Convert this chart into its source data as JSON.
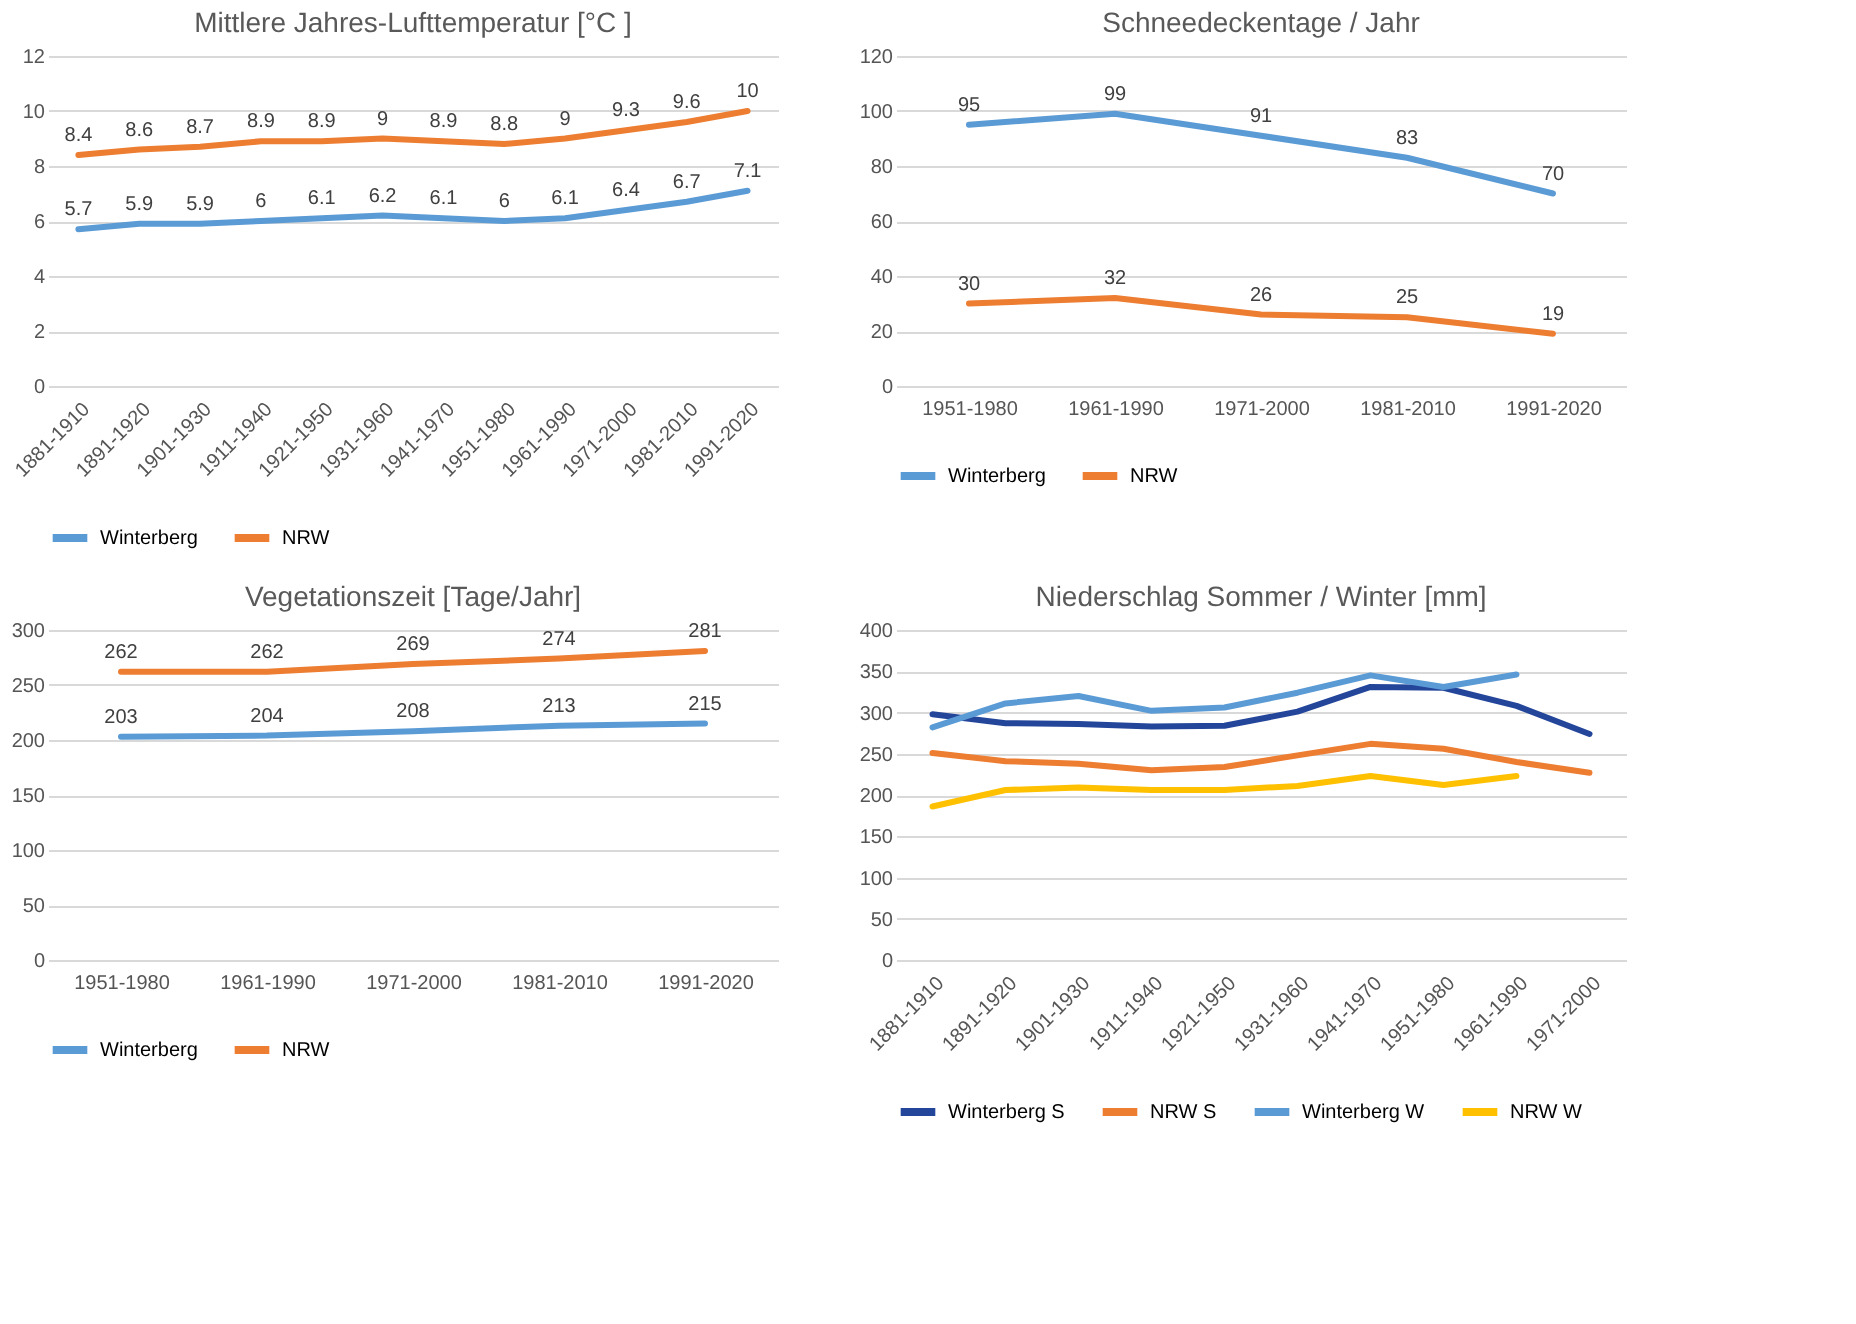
{
  "chart_data": [
    {
      "type": "line",
      "title": "Mittlere Jahres-Lufttemperatur   [°C ]",
      "categories": [
        "1881-1910",
        "1891-1920",
        "1901-1930",
        "1911-1940",
        "1921-1950",
        "1931-1960",
        "1941-1970",
        "1951-1980",
        "1961-1990",
        "1971-2000",
        "1981-2010",
        "1991-2020"
      ],
      "series": [
        {
          "name": "Winterberg",
          "color": "#5b9bd5",
          "values": [
            5.7,
            5.9,
            5.9,
            6,
            6.1,
            6.2,
            6.1,
            6,
            6.1,
            6.4,
            6.7,
            7.1
          ]
        },
        {
          "name": "NRW",
          "color": "#ed7d31",
          "values": [
            8.4,
            8.6,
            8.7,
            8.9,
            8.9,
            9,
            8.9,
            8.8,
            9,
            9.3,
            9.6,
            10
          ]
        }
      ],
      "ylim": [
        0,
        12
      ],
      "yticks": [
        0,
        2,
        4,
        6,
        8,
        10,
        12
      ],
      "grid": "y",
      "legend": "bottom",
      "data_labels": true
    },
    {
      "type": "line",
      "title": "Schneedeckentage / Jahr",
      "categories": [
        "1951-1980",
        "1961-1990",
        "1971-2000",
        "1981-2010",
        "1991-2020"
      ],
      "series": [
        {
          "name": "Winterberg",
          "color": "#5b9bd5",
          "values": [
            95,
            99,
            91,
            83,
            70
          ]
        },
        {
          "name": "NRW",
          "color": "#ed7d31",
          "values": [
            30,
            32,
            26,
            25,
            19
          ]
        }
      ],
      "ylim": [
        0,
        120
      ],
      "yticks": [
        0,
        20,
        40,
        60,
        80,
        100,
        120
      ],
      "grid": "y",
      "legend": "bottom",
      "data_labels": true
    },
    {
      "type": "line",
      "title": "Vegetationszeit [Tage/Jahr]",
      "categories": [
        "1951-1980",
        "1961-1990",
        "1971-2000",
        "1981-2010",
        "1991-2020"
      ],
      "series": [
        {
          "name": "Winterberg",
          "color": "#5b9bd5",
          "values": [
            203,
            204,
            208,
            213,
            215
          ]
        },
        {
          "name": "NRW",
          "color": "#ed7d31",
          "values": [
            262,
            262,
            269,
            274,
            281
          ]
        }
      ],
      "ylim": [
        0,
        300
      ],
      "yticks": [
        0,
        50,
        100,
        150,
        200,
        250,
        300
      ],
      "grid": "y",
      "legend": "bottom",
      "data_labels": true
    },
    {
      "type": "line",
      "title": "Niederschlag Sommer / Winter [mm]",
      "categories": [
        "1881-1910",
        "1891-1920",
        "1901-1930",
        "1911-1940",
        "1921-1950",
        "1931-1960",
        "1941-1970",
        "1951-1980",
        "1961-1990",
        "1971-2000"
      ],
      "series": [
        {
          "name": "Winterberg S",
          "color": "#24469a",
          "values": [
            298,
            287,
            286,
            283,
            284,
            301,
            331,
            330,
            308,
            274
          ]
        },
        {
          "name": "NRW S",
          "color": "#ed7d31",
          "values": [
            251,
            241,
            238,
            230,
            234,
            248,
            262,
            256,
            240,
            227
          ]
        },
        {
          "name": "Winterberg W",
          "color": "#5b9bd5",
          "values": [
            282,
            311,
            320,
            302,
            306,
            324,
            345,
            331,
            346,
            null
          ]
        },
        {
          "name": "NRW W",
          "color": "#ffc000",
          "values": [
            186,
            206,
            209,
            206,
            206,
            211,
            223,
            212,
            223,
            null
          ]
        }
      ],
      "ylim": [
        0,
        400
      ],
      "yticks": [
        0,
        50,
        100,
        150,
        200,
        250,
        300,
        350,
        400
      ],
      "grid": "y",
      "legend": "bottom"
    }
  ]
}
